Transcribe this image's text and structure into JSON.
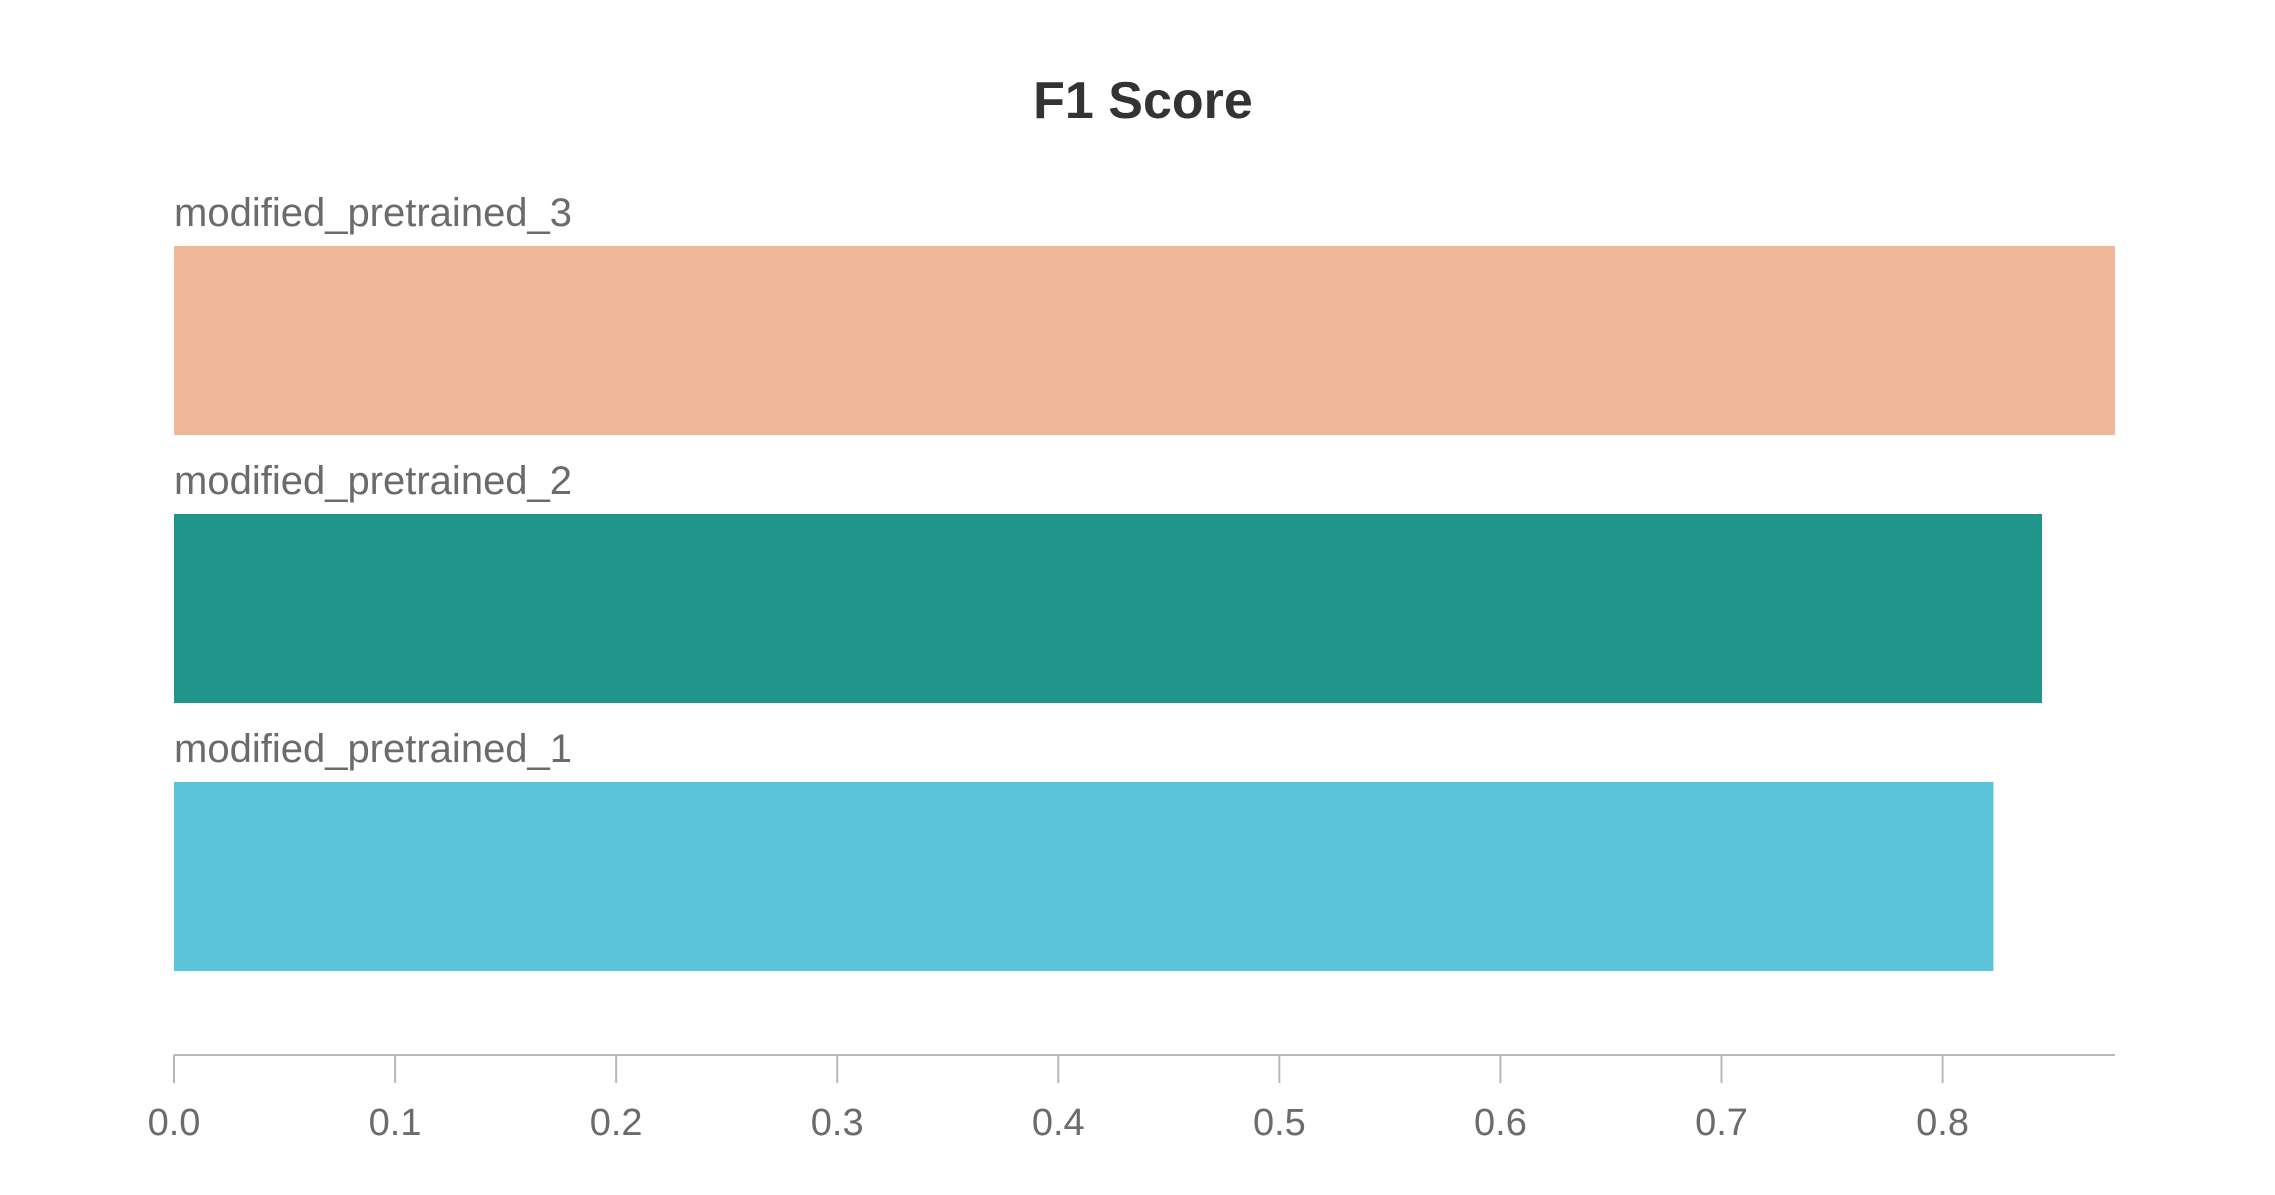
{
  "chart_data": {
    "type": "bar",
    "orientation": "horizontal",
    "title": "F1 Score",
    "xlabel": "",
    "ylabel": "",
    "categories": [
      "modified_pretrained_3",
      "modified_pretrained_2",
      "modified_pretrained_1"
    ],
    "values": [
      0.878,
      0.845,
      0.823
    ],
    "colors": [
      "#f1b799",
      "#22958a",
      "#5bc4db"
    ],
    "xlim": [
      0,
      0.878
    ],
    "xticks": [
      0,
      0.1,
      0.2,
      0.3,
      0.4,
      0.5,
      0.6,
      0.7,
      0.8
    ],
    "xtick_labels": [
      "0.0",
      "0.1",
      "0.2",
      "0.3",
      "0.4",
      "0.5",
      "0.6",
      "0.7",
      "0.8"
    ],
    "grid": false,
    "legend": "none"
  }
}
